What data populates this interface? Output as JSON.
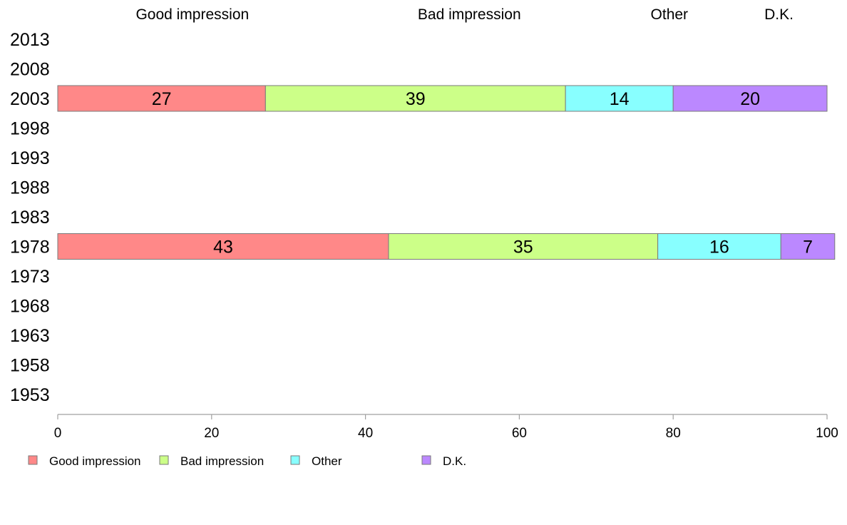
{
  "chart_data": {
    "type": "bar",
    "orientation": "horizontal",
    "stacked": true,
    "categories": [
      "2013",
      "2008",
      "2003",
      "1998",
      "1993",
      "1988",
      "1983",
      "1978",
      "1973",
      "1968",
      "1963",
      "1958",
      "1953"
    ],
    "series": [
      {
        "name": "Good impression",
        "color": "#ff8888",
        "values": [
          null,
          null,
          27,
          null,
          null,
          null,
          null,
          43,
          null,
          null,
          null,
          null,
          null
        ]
      },
      {
        "name": "Bad impression",
        "color": "#ccff88",
        "values": [
          null,
          null,
          39,
          null,
          null,
          null,
          null,
          35,
          null,
          null,
          null,
          null,
          null
        ]
      },
      {
        "name": "Other",
        "color": "#88ffff",
        "values": [
          null,
          null,
          14,
          null,
          null,
          null,
          null,
          16,
          null,
          null,
          null,
          null,
          null
        ]
      },
      {
        "name": "D.K.",
        "color": "#bb88ff",
        "values": [
          null,
          null,
          20,
          null,
          null,
          null,
          null,
          7,
          null,
          null,
          null,
          null,
          null
        ]
      }
    ],
    "xlim": [
      0,
      100
    ],
    "xticks": [
      0,
      20,
      40,
      60,
      80,
      100
    ],
    "column_headers": [
      "Good impression",
      "Bad impression",
      "Other",
      "D.K."
    ],
    "legend": {
      "position": "bottom",
      "entries": [
        "Good impression",
        "Bad impression",
        "Other",
        "D.K."
      ]
    },
    "grid": false
  }
}
